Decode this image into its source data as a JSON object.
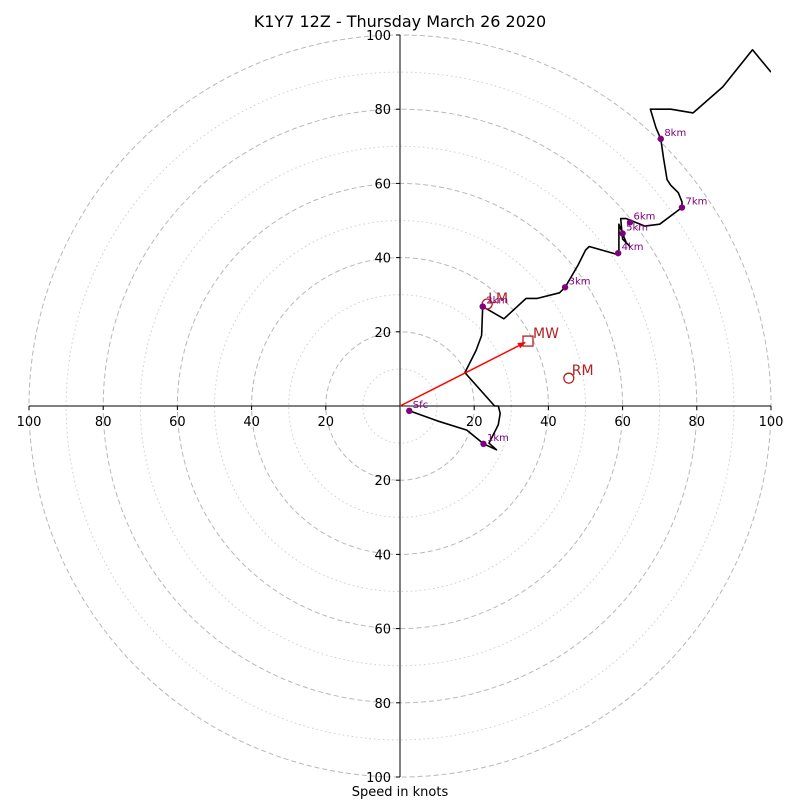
{
  "chart_data": {
    "type": "hodograph",
    "title": "K1Y7 12Z - Thursday March 26 2020",
    "xlabel": "Speed in knots",
    "range": [
      -100,
      100
    ],
    "rings_major": [
      20,
      40,
      60,
      80,
      100
    ],
    "rings_minor": [
      10,
      30,
      50,
      70,
      90
    ],
    "tick_labels_x": [
      "100",
      "80",
      "60",
      "40",
      "20",
      "20",
      "40",
      "60",
      "80",
      "100"
    ],
    "tick_values_x": [
      -100,
      -80,
      -60,
      -40,
      -20,
      20,
      40,
      60,
      80,
      100
    ],
    "tick_labels_y": [
      "100",
      "80",
      "60",
      "40",
      "20",
      "20",
      "40",
      "60",
      "80",
      "100"
    ],
    "tick_values_y": [
      100,
      80,
      60,
      40,
      20,
      -20,
      -40,
      -60,
      -80,
      -100
    ],
    "trace": {
      "color": "#000000",
      "points": [
        [
          2.5,
          -1.3
        ],
        [
          10,
          -4
        ],
        [
          18,
          -6.5
        ],
        [
          22.5,
          -10.2
        ],
        [
          26,
          -11.8
        ],
        [
          24,
          -10
        ],
        [
          26,
          -6
        ],
        [
          26.5,
          -5
        ],
        [
          27,
          -2
        ],
        [
          26.5,
          0
        ],
        [
          25.5,
          0
        ],
        [
          17.5,
          9
        ],
        [
          20.5,
          15
        ],
        [
          22,
          19
        ],
        [
          22.3,
          26.8
        ],
        [
          28,
          23.5
        ],
        [
          34,
          29
        ],
        [
          37,
          29
        ],
        [
          43,
          30.5
        ],
        [
          44.5,
          32
        ],
        [
          48,
          38
        ],
        [
          50,
          42
        ],
        [
          51,
          43
        ],
        [
          58,
          41
        ],
        [
          59,
          42
        ],
        [
          59,
          45
        ],
        [
          59,
          49
        ],
        [
          60,
          46.5
        ],
        [
          61,
          44
        ],
        [
          62,
          43
        ],
        [
          60,
          45
        ],
        [
          59.5,
          50.5
        ],
        [
          61,
          50.5
        ],
        [
          66,
          48.5
        ],
        [
          70,
          49
        ],
        [
          76,
          53.5
        ],
        [
          76,
          55
        ],
        [
          75,
          57.5
        ],
        [
          73,
          59.5
        ],
        [
          72,
          61
        ],
        [
          71,
          67
        ],
        [
          70.3,
          72
        ],
        [
          69,
          75
        ],
        [
          67.5,
          80
        ],
        [
          73,
          80
        ],
        [
          79,
          79
        ],
        [
          87,
          86
        ],
        [
          95,
          96
        ],
        [
          100,
          90
        ]
      ]
    },
    "height_markers": [
      {
        "label": "Sfc",
        "u": 2.5,
        "v": -1.3
      },
      {
        "label": "1km",
        "u": 22.5,
        "v": -10.2
      },
      {
        "label": "2km",
        "u": 22.3,
        "v": 26.8
      },
      {
        "label": "3km",
        "u": 44.5,
        "v": 32
      },
      {
        "label": "4km",
        "u": 58.8,
        "v": 41.2
      },
      {
        "label": "5km",
        "u": 60,
        "v": 46.5
      },
      {
        "label": "6km",
        "u": 62,
        "v": 49.5
      },
      {
        "label": "7km",
        "u": 76,
        "v": 53.5
      },
      {
        "label": "8km",
        "u": 70.3,
        "v": 72
      }
    ],
    "marker_color": "#800080",
    "motion_color": "#b22222",
    "storm_motion": {
      "MW": {
        "label": "MW",
        "u": 34.5,
        "v": 17.5
      },
      "RM": {
        "label": "RM",
        "u": 45.5,
        "v": 7.5
      },
      "LM": {
        "label": "LM",
        "u": 23.5,
        "v": 27.5
      }
    },
    "arrow_color": "#ff0000"
  }
}
